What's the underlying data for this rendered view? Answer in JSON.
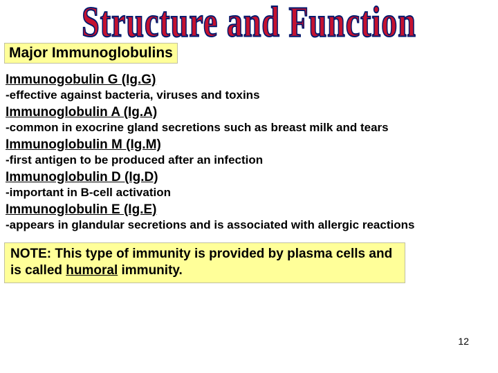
{
  "title": "Structure and Function",
  "section_label": "Major Immunoglobulins",
  "items": [
    {
      "heading": "Immunogobulin G (Ig.G)",
      "desc": "-effective against bacteria, viruses and toxins"
    },
    {
      "heading": "Immunoglobulin A (Ig.A)",
      "desc": "-common in exocrine gland secretions such as breast milk and tears"
    },
    {
      "heading": "Immunoglobulin M (Ig.M)",
      "desc": "-first antigen to be produced after an infection"
    },
    {
      "heading": "Immunoglobulin D (Ig.D)",
      "desc": "-important in B-cell activation"
    },
    {
      "heading": "Immunoglobulin E (Ig.E)",
      "desc": "-appears in glandular secretions and is associated with allergic reactions"
    }
  ],
  "note": {
    "prefix": "NOTE: This type of immunity is provided by plasma cells and is called ",
    "underlined": "humoral",
    "suffix": " immunity."
  },
  "page_number": "12",
  "colors": {
    "title_fill": "#c41230",
    "title_stroke": "#001a6e",
    "highlight_bg": "#ffff99",
    "text": "#000000",
    "page_bg": "#ffffff"
  },
  "typography": {
    "title_fontsize": 46,
    "section_label_fontsize": 21,
    "heading_fontsize": 19,
    "desc_fontsize": 17,
    "note_fontsize": 19,
    "pagenum_fontsize": 14
  }
}
